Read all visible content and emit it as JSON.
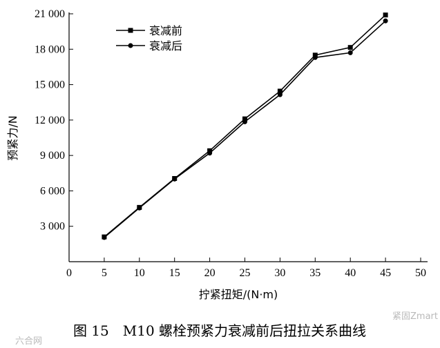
{
  "chart_data": {
    "type": "line",
    "xlabel": "拧紧扭矩/(N·m)",
    "ylabel": "预紧力/N",
    "xlim": [
      0,
      50
    ],
    "ylim": [
      0,
      21000
    ],
    "x_ticks": [
      0,
      5,
      10,
      15,
      20,
      25,
      30,
      35,
      40,
      45,
      50
    ],
    "x_tick_labels": [
      "0",
      "5",
      "10",
      "15",
      "20",
      "25",
      "30",
      "35",
      "40",
      "45",
      "50"
    ],
    "y_ticks": [
      3000,
      6000,
      9000,
      12000,
      15000,
      18000,
      21000
    ],
    "y_tick_labels": [
      "3 000",
      "6 000",
      "9 000",
      "12 000",
      "15 000",
      "18 000",
      "21 000"
    ],
    "legend_position": "top-left",
    "grid": false,
    "x": [
      5,
      10,
      15,
      20,
      25,
      30,
      35,
      40,
      45
    ],
    "series": [
      {
        "name": "衰减前",
        "marker": "square",
        "values": [
          2100,
          4600,
          7050,
          9400,
          12100,
          14450,
          17500,
          18150,
          20900
        ]
      },
      {
        "name": "衰减后",
        "marker": "circle",
        "values": [
          2050,
          4550,
          7000,
          9200,
          11850,
          14150,
          17300,
          17700,
          20400
        ]
      }
    ]
  },
  "caption": "图 15　M10 螺栓预紧力衰减前后扭拉关系曲线",
  "watermarks": {
    "left": "六合网",
    "right": "紧固Zmart"
  }
}
